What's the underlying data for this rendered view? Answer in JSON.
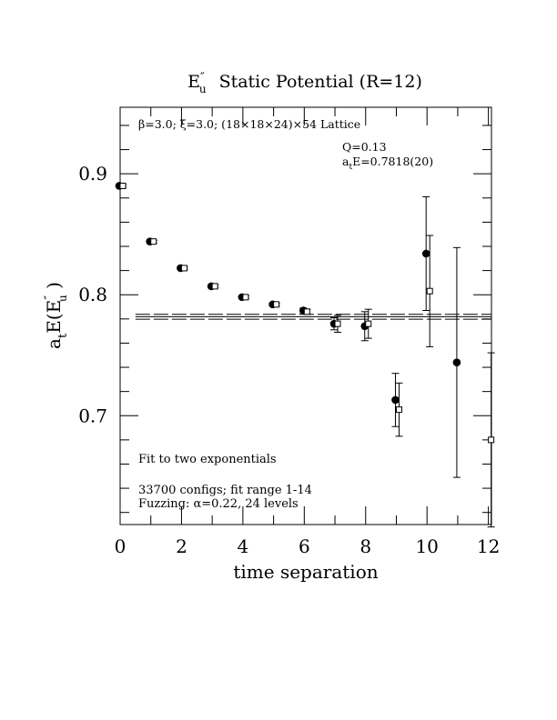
{
  "chart_data": {
    "type": "scatter",
    "title": "Static Potential (R=12)",
    "title_symbol": {
      "base": "E",
      "prime": "″",
      "sub": "u"
    },
    "xlabel": "time separation",
    "ylabel": {
      "pre": "a",
      "pre_sub": "t",
      "mid": "E(E",
      "prime": "″",
      "sub": "u",
      "post": " )"
    },
    "xlim": [
      0,
      12.1
    ],
    "ylim": [
      0.61,
      0.955
    ],
    "x_ticks": [
      0,
      2,
      4,
      6,
      8,
      10,
      12
    ],
    "y_ticks": [
      0.7,
      0.8,
      0.9
    ],
    "y_tick_labels": [
      "0.7",
      "0.8",
      "0.9"
    ],
    "grid": false,
    "series": [
      {
        "marker": "filled-circle",
        "points": [
          {
            "x": 0,
            "y": 0.89,
            "err": 0.001
          },
          {
            "x": 1,
            "y": 0.844,
            "err": 0.001
          },
          {
            "x": 2,
            "y": 0.822,
            "err": 0.001
          },
          {
            "x": 3,
            "y": 0.807,
            "err": 0.001
          },
          {
            "x": 4,
            "y": 0.798,
            "err": 0.001
          },
          {
            "x": 5,
            "y": 0.792,
            "err": 0.001
          },
          {
            "x": 6,
            "y": 0.787,
            "err": 0.002
          },
          {
            "x": 7,
            "y": 0.776,
            "err": 0.005
          },
          {
            "x": 8,
            "y": 0.774,
            "err": 0.012
          },
          {
            "x": 9,
            "y": 0.713,
            "err": 0.022
          },
          {
            "x": 10,
            "y": 0.834,
            "err": 0.047
          },
          {
            "x": 11,
            "y": 0.744,
            "err": 0.095
          }
        ]
      },
      {
        "marker": "open-square",
        "points": [
          {
            "x": 0,
            "y": 0.89,
            "err": 0.001
          },
          {
            "x": 1,
            "y": 0.844,
            "err": 0.001
          },
          {
            "x": 2,
            "y": 0.822,
            "err": 0.001
          },
          {
            "x": 3,
            "y": 0.807,
            "err": 0.001
          },
          {
            "x": 4,
            "y": 0.798,
            "err": 0.001
          },
          {
            "x": 5,
            "y": 0.792,
            "err": 0.001
          },
          {
            "x": 6,
            "y": 0.786,
            "err": 0.002
          },
          {
            "x": 7,
            "y": 0.776,
            "err": 0.007
          },
          {
            "x": 8,
            "y": 0.776,
            "err": 0.012
          },
          {
            "x": 9,
            "y": 0.705,
            "err": 0.022
          },
          {
            "x": 10,
            "y": 0.803,
            "err": 0.046
          },
          {
            "x": 12,
            "y": 0.68,
            "err": 0.072
          }
        ]
      }
    ],
    "fit": {
      "value": 0.7818,
      "error": 0.002,
      "x_range": [
        0.5,
        12.1
      ]
    },
    "annotations": {
      "lattice": "β=3.0; ξ=3.0; (18×18×24)×54 Lattice",
      "q": "Q=0.13",
      "energy": {
        "pre": "a",
        "pre_sub": "t",
        "text": "E=0.7818(20)"
      },
      "fit_label": "Fit to two exponentials",
      "configs": "33700 configs; fit range 1-14",
      "fuzzing": "Fuzzing: α=0.22, 24 levels"
    }
  }
}
